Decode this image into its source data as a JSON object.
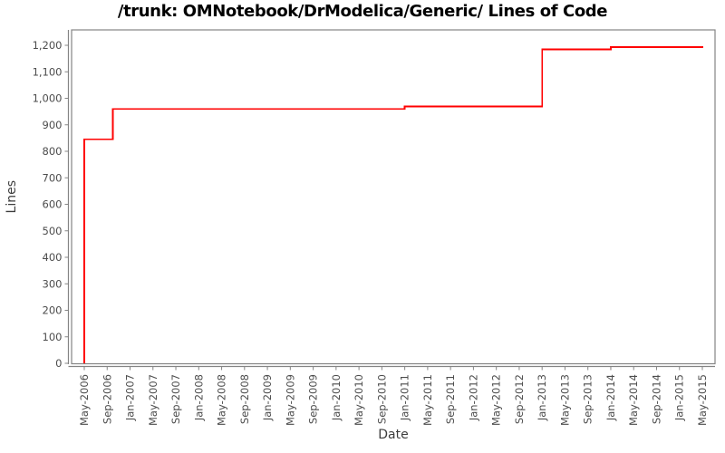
{
  "chart_data": {
    "type": "line",
    "step_mode": "after",
    "title": "/trunk: OMNotebook/DrModelica/Generic/ Lines of Code",
    "xlabel": "Date",
    "ylabel": "Lines",
    "ylim": [
      0,
      1200
    ],
    "y_tick_values": [
      0,
      100,
      200,
      300,
      400,
      500,
      600,
      700,
      800,
      900,
      1000,
      1100,
      1200
    ],
    "y_tick_labels": [
      "0",
      "100",
      "200",
      "300",
      "400",
      "500",
      "600",
      "700",
      "800",
      "900",
      "1,000",
      "1,100",
      "1,200"
    ],
    "x_tick_labels": [
      "May-2006",
      "Sep-2006",
      "Jan-2007",
      "May-2007",
      "Sep-2007",
      "Jan-2008",
      "May-2008",
      "Sep-2008",
      "Jan-2009",
      "May-2009",
      "Sep-2009",
      "Jan-2010",
      "May-2010",
      "Sep-2010",
      "Jan-2011",
      "May-2011",
      "Sep-2011",
      "Jan-2012",
      "May-2012",
      "Sep-2012",
      "Jan-2013",
      "May-2013",
      "Sep-2013",
      "Jan-2014",
      "May-2014",
      "Sep-2014",
      "Jan-2015",
      "May-2015"
    ],
    "x_tick_interval_months": 4,
    "x_start": "2006-05",
    "grid": false,
    "legend": null,
    "series": [
      {
        "name": "Lines of Code",
        "color": "#ff0000",
        "points": [
          {
            "date": "2006-05",
            "value": 0
          },
          {
            "date": "2006-05",
            "value": 845
          },
          {
            "date": "2006-10",
            "value": 960
          },
          {
            "date": "2011-01",
            "value": 969
          },
          {
            "date": "2013-01",
            "value": 1185
          },
          {
            "date": "2014-01",
            "value": 1193
          },
          {
            "date": "2015-05",
            "value": 1197
          }
        ]
      }
    ]
  },
  "colors": {
    "line": "#ff0000",
    "plot_border": "#848484",
    "axis_line": "#848484",
    "tick_label": "#4d4d4d",
    "axis_title": "#3d3d3d",
    "title": "#000000",
    "background": "#ffffff"
  }
}
